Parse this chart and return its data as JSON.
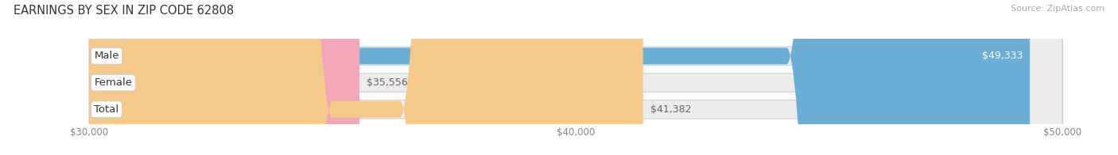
{
  "title": "EARNINGS BY SEX IN ZIP CODE 62808",
  "source": "Source: ZipAtlas.com",
  "categories": [
    "Male",
    "Female",
    "Total"
  ],
  "values": [
    49333,
    35556,
    41382
  ],
  "labels": [
    "$49,333",
    "$35,556",
    "$41,382"
  ],
  "bar_colors": [
    "#6aaed6",
    "#f4a7b9",
    "#f5c98a"
  ],
  "bar_track_color": "#ececec",
  "bar_border_color": "#d0d0d0",
  "xmin": 30000,
  "xmax": 50000,
  "xticks": [
    30000,
    40000,
    50000
  ],
  "xtick_labels": [
    "$30,000",
    "$40,000",
    "$50,000"
  ],
  "background_color": "#ffffff",
  "title_fontsize": 10.5,
  "label_fontsize": 9,
  "tick_fontsize": 8.5,
  "source_fontsize": 8,
  "cat_fontsize": 9.5
}
